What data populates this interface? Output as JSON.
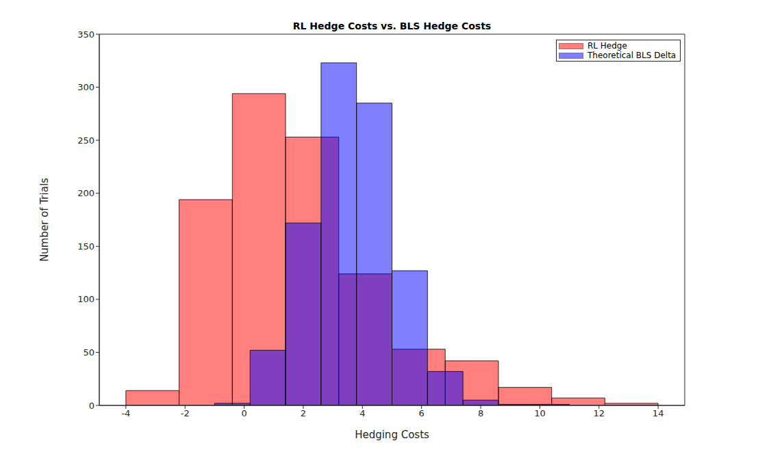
{
  "chart_data": {
    "type": "histogram",
    "title": "RL Hedge Costs vs. BLS Hedge Costs",
    "xlabel": "Hedging Costs",
    "ylabel": "Number of Trials",
    "xlim": [
      -4.9,
      14.9
    ],
    "xticks": [
      -4,
      -2,
      0,
      2,
      4,
      6,
      8,
      10,
      12,
      14
    ],
    "ylim": [
      0,
      350
    ],
    "yticks": [
      0,
      50,
      100,
      150,
      200,
      250,
      300,
      350
    ],
    "legend": "northeast",
    "grid": false,
    "series": [
      {
        "name": "RL Hedge",
        "color": "#ff0000",
        "bins": [
          -4,
          -2.2,
          -0.4,
          1.4,
          3.2,
          5.0,
          6.8,
          8.6,
          10.4,
          12.2,
          14.0
        ],
        "values": [
          14,
          194,
          294,
          253,
          124,
          53,
          42,
          17,
          7,
          2
        ]
      },
      {
        "name": "Theoretical BLS Delta",
        "color": "#0000ff",
        "bins": [
          -1.0,
          0.2,
          1.4,
          2.6,
          3.8,
          5.0,
          6.2,
          7.4,
          8.6,
          9.8,
          11.0
        ],
        "values": [
          2,
          52,
          172,
          323,
          285,
          127,
          32,
          5,
          1,
          1
        ]
      }
    ]
  }
}
